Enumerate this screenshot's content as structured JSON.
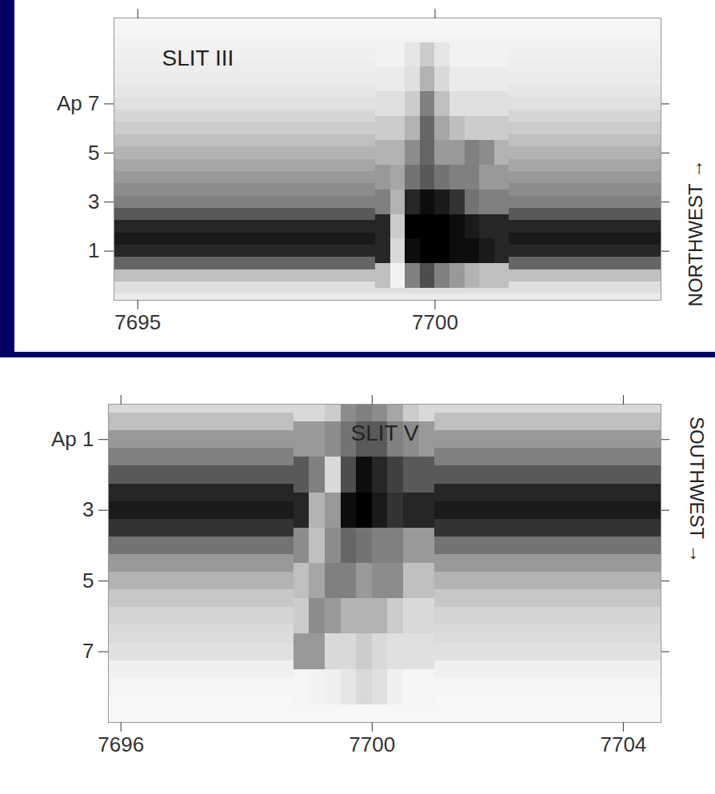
{
  "chart_data": [
    {
      "type": "spectrum_image",
      "title": "SLIT III",
      "direction_label": "NORTHWEST →",
      "xlim": [
        7694.6,
        7703.8
      ],
      "xticks": [
        7695,
        7700
      ],
      "ylim": [
        -1,
        10.5
      ],
      "yticks": [
        1,
        3,
        5,
        {
          "value": 7,
          "label": "Ap 7"
        }
      ],
      "intensity_range": [
        0,
        1
      ],
      "continuum": {
        "ap": [
          -1,
          -0.5,
          0,
          0.5,
          1,
          1.5,
          2,
          2.5,
          3,
          3.5,
          4,
          4.5,
          5,
          5.5,
          6,
          6.5,
          7,
          7.5,
          8,
          8.5,
          9,
          9.5,
          10,
          10.5
        ],
        "values": [
          0.08,
          0.12,
          0.25,
          0.6,
          0.85,
          0.9,
          0.85,
          0.65,
          0.5,
          0.45,
          0.4,
          0.35,
          0.3,
          0.25,
          0.2,
          0.16,
          0.12,
          0.1,
          0.08,
          0.07,
          0.06,
          0.05,
          0.04,
          0.03
        ]
      },
      "cells": {
        "x_edges": [
          7699.0,
          7699.25,
          7699.5,
          7699.75,
          7700.0,
          7700.25,
          7700.5,
          7700.75,
          7701.0,
          7701.25
        ],
        "ap": [
          0,
          1,
          2,
          3,
          4,
          5,
          6,
          7,
          8,
          9
        ],
        "values": [
          [
            0.25,
            0.05,
            0.5,
            0.7,
            0.5,
            0.4,
            0.3,
            0.25,
            0.25
          ],
          [
            0.85,
            0.15,
            0.95,
            1,
            1,
            0.95,
            0.95,
            0.9,
            0.85
          ],
          [
            0.85,
            0.2,
            1,
            1,
            1,
            0.95,
            0.9,
            0.85,
            0.85
          ],
          [
            0.5,
            0.3,
            0.85,
            0.95,
            0.9,
            0.8,
            0.55,
            0.5,
            0.5
          ],
          [
            0.4,
            0.35,
            0.55,
            0.65,
            0.55,
            0.5,
            0.5,
            0.4,
            0.4
          ],
          [
            0.3,
            0.3,
            0.45,
            0.6,
            0.4,
            0.4,
            0.5,
            0.45,
            0.3
          ],
          [
            0.2,
            0.2,
            0.3,
            0.6,
            0.35,
            0.25,
            0.2,
            0.2,
            0.2
          ],
          [
            0.12,
            0.12,
            0.2,
            0.5,
            0.25,
            0.12,
            0.12,
            0.12,
            0.12
          ],
          [
            0.08,
            0.08,
            0.12,
            0.3,
            0.15,
            0.08,
            0.08,
            0.08,
            0.08
          ],
          [
            0.05,
            0.05,
            0.1,
            0.2,
            0.1,
            0.05,
            0.05,
            0.05,
            0.05
          ]
        ]
      }
    },
    {
      "type": "spectrum_image",
      "title": "SLIT V",
      "direction_label": "SOUTHWEST →",
      "xlim": [
        7695.8,
        7704.6
      ],
      "xticks": [
        7696,
        7700,
        7704
      ],
      "ylim": [
        9,
        0
      ],
      "yticks": [
        {
          "value": 1,
          "label": "Ap 1"
        },
        3,
        5,
        7
      ],
      "intensity_range": [
        0,
        1
      ],
      "continuum": {
        "ap": [
          0,
          0.5,
          1,
          1.5,
          2,
          2.5,
          3,
          3.5,
          4,
          4.5,
          5,
          5.5,
          6,
          6.5,
          7,
          7.5,
          8,
          8.5,
          9
        ],
        "values": [
          0.15,
          0.25,
          0.4,
          0.5,
          0.65,
          0.85,
          0.9,
          0.8,
          0.55,
          0.4,
          0.3,
          0.22,
          0.17,
          0.14,
          0.12,
          0.06,
          0.04,
          0.03,
          0.03
        ]
      },
      "cells": {
        "x_edges": [
          7698.75,
          7699.0,
          7699.25,
          7699.5,
          7699.75,
          7700.0,
          7700.25,
          7700.5,
          7700.75,
          7701.0
        ],
        "ap": [
          0,
          1,
          2,
          3,
          4,
          5,
          6,
          7,
          8
        ],
        "values": [
          [
            0.15,
            0.15,
            0.2,
            0.45,
            0.5,
            0.45,
            0.35,
            0.2,
            0.15
          ],
          [
            0.4,
            0.4,
            0.45,
            0.55,
            0.65,
            0.65,
            0.5,
            0.45,
            0.4
          ],
          [
            0.65,
            0.5,
            0.15,
            0.7,
            0.95,
            0.85,
            0.75,
            0.65,
            0.65
          ],
          [
            0.85,
            0.3,
            0.4,
            0.95,
            1,
            0.9,
            0.8,
            0.85,
            0.85
          ],
          [
            0.45,
            0.25,
            0.45,
            0.6,
            0.55,
            0.5,
            0.5,
            0.4,
            0.4
          ],
          [
            0.25,
            0.35,
            0.5,
            0.5,
            0.4,
            0.45,
            0.45,
            0.25,
            0.25
          ],
          [
            0.2,
            0.45,
            0.4,
            0.3,
            0.3,
            0.3,
            0.2,
            0.15,
            0.15
          ],
          [
            0.4,
            0.4,
            0.15,
            0.15,
            0.2,
            0.15,
            0.12,
            0.12,
            0.12
          ],
          [
            0.04,
            0.05,
            0.06,
            0.1,
            0.15,
            0.12,
            0.06,
            0.04,
            0.04
          ]
        ]
      }
    }
  ]
}
